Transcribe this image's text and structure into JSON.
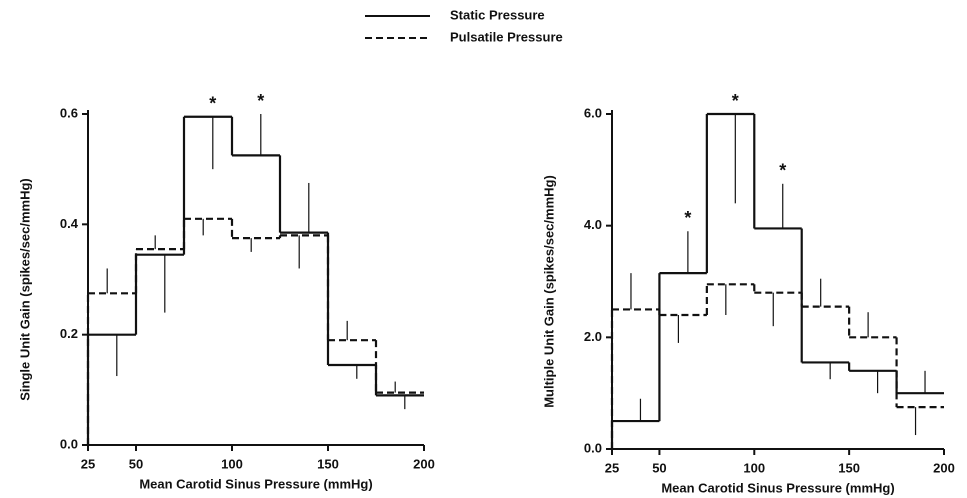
{
  "chart_data": [
    {
      "type": "step-histogram",
      "ylabel": "Single Unit Gain (spikes/sec/mmHg)",
      "xlabel": "Mean Carotid Sinus Pressure (mmHg)",
      "bins": [
        25,
        50,
        75,
        100,
        125,
        150,
        175,
        200
      ],
      "xlim": [
        25,
        200
      ],
      "xticks": [
        25,
        50,
        100,
        150,
        200
      ],
      "ylim": [
        0,
        0.6
      ],
      "yticks": [
        {
          "value": 0,
          "label": "0.0"
        },
        0.2,
        0.4,
        0.6
      ],
      "series": [
        {
          "name": "Static Pressure",
          "color": "#111111",
          "line_style": "solid",
          "values": [
            0.2,
            0.345,
            0.595,
            0.525,
            0.385,
            0.145,
            0.09
          ],
          "errors": [
            0.075,
            0.105,
            0.095,
            0.075,
            0.09,
            0.025,
            0.025
          ],
          "error_direction": [
            "down",
            "down",
            "down",
            "up",
            "up",
            "down",
            "down"
          ]
        },
        {
          "name": "Pulsatile Pressure",
          "color": "#111111",
          "line_style": "dashed",
          "values": [
            0.275,
            0.355,
            0.41,
            0.375,
            0.38,
            0.19,
            0.095
          ],
          "errors": [
            0.045,
            0.025,
            0.03,
            0.025,
            0.06,
            0.035,
            0.02
          ],
          "error_direction": [
            "up",
            "up",
            "down",
            "down",
            "down",
            "up",
            "up"
          ]
        }
      ],
      "annotations": [
        {
          "text": "*",
          "series": 0,
          "bin": 2
        },
        {
          "text": "*",
          "series": 0,
          "bin": 3
        }
      ]
    },
    {
      "type": "step-histogram",
      "ylabel": "Multiple Unit Gain (spikes/sec/mmHg)",
      "xlabel": "Mean Carotid Sinus Pressure (mmHg)",
      "bins": [
        25,
        50,
        75,
        100,
        125,
        150,
        175,
        200
      ],
      "xlim": [
        25,
        200
      ],
      "xticks": [
        25,
        50,
        100,
        150,
        200
      ],
      "ylim": [
        0,
        6
      ],
      "yticks": [
        {
          "value": 0,
          "label": "0.0"
        },
        {
          "value": 2,
          "label": "2.0"
        },
        {
          "value": 4,
          "label": "4.0"
        },
        {
          "value": 6,
          "label": "6.0"
        }
      ],
      "series": [
        {
          "color": "#111111",
          "line_style": "solid",
          "values": [
            0.5,
            3.15,
            6.0,
            3.95,
            1.55,
            1.4,
            1.0
          ],
          "errors": [
            0.4,
            0.75,
            1.6,
            0.8,
            0.3,
            0.4,
            0.4
          ],
          "error_direction": [
            "up",
            "up",
            "down",
            "up",
            "down",
            "down",
            "up"
          ]
        },
        {
          "color": "#111111",
          "line_style": "dashed",
          "values": [
            2.5,
            2.4,
            2.95,
            2.8,
            2.55,
            2.0,
            0.75
          ],
          "errors": [
            0.65,
            0.5,
            0.55,
            0.6,
            0.5,
            0.45,
            0.5
          ],
          "error_direction": [
            "up",
            "down",
            "down",
            "down",
            "up",
            "up",
            "down"
          ]
        }
      ],
      "annotations": [
        {
          "text": "*",
          "series": 0,
          "bin": 1
        },
        {
          "text": "*",
          "series": 0,
          "bin": 2
        },
        {
          "text": "*",
          "series": 0,
          "bin": 3
        }
      ]
    }
  ]
}
